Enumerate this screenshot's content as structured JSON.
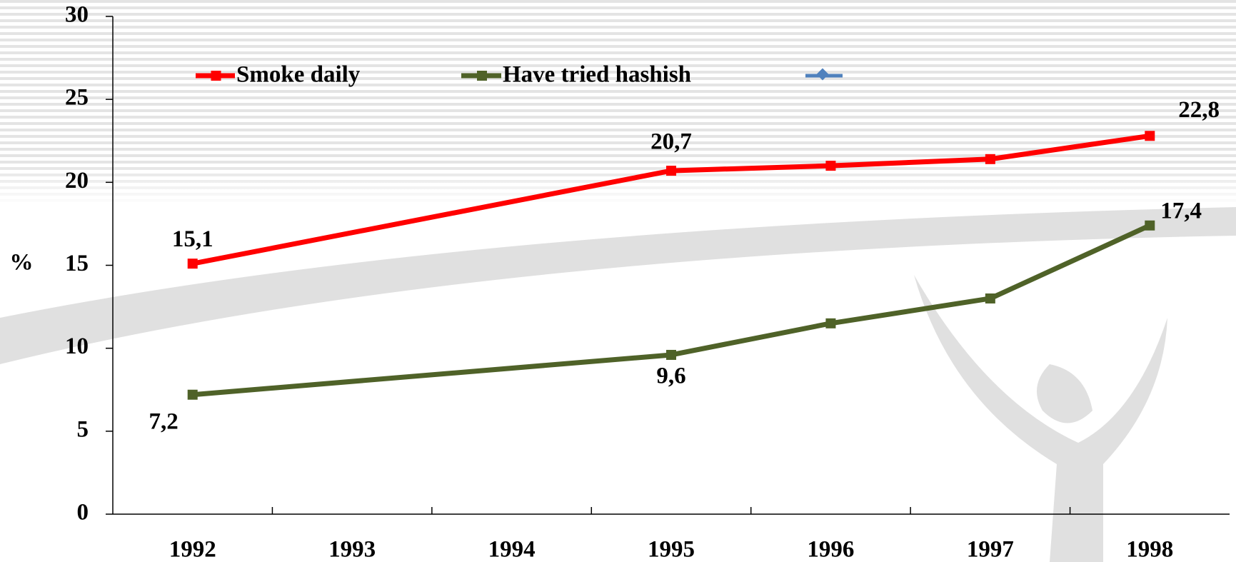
{
  "chart_data": {
    "type": "line",
    "ylabel": "%",
    "x": [
      1992,
      1995,
      1996,
      1997,
      1998
    ],
    "xlim": [
      1991.5,
      1998.5
    ],
    "xticks": [
      1992,
      1993,
      1994,
      1995,
      1996,
      1997,
      1998
    ],
    "ylim": [
      0,
      30
    ],
    "yticks": [
      0,
      5,
      10,
      15,
      20,
      25,
      30
    ],
    "series": [
      {
        "name": "Smoke daily",
        "color": "#ff0000",
        "values": [
          15.1,
          20.7,
          21.0,
          21.4,
          22.8
        ],
        "value_labels": [
          "15,1",
          "20,7",
          null,
          null,
          "22,8"
        ]
      },
      {
        "name": "Have tried hashish",
        "color": "#4f6228",
        "values": [
          7.2,
          9.6,
          11.5,
          13.0,
          17.4
        ],
        "value_labels": [
          "7,2",
          "9,6",
          null,
          null,
          "17,4"
        ]
      }
    ]
  }
}
